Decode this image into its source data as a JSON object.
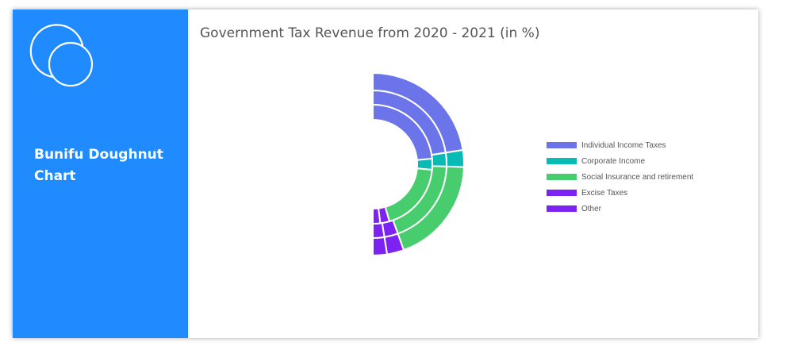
{
  "sidebar": {
    "title": "Bunifu Doughnut Chart",
    "bg_color": "#1f8bff"
  },
  "chart_data": {
    "type": "doughnut",
    "title": "Government Tax Revenue from 2020 - 2021 (in %)",
    "layout": "half-circle, rings stacked, legend right",
    "categories": [
      "Individual Income Taxes",
      "Corporate Income",
      "Social Insurance and retirement",
      "Excise Taxes",
      "Other"
    ],
    "colors": [
      "#6b74e8",
      "#0abab5",
      "#47cc6e",
      "#7c22f2",
      "#7c22f2"
    ],
    "series": [
      {
        "values": [
          45,
          6,
          38,
          6,
          5
        ]
      },
      {
        "values": [
          45,
          6,
          38,
          6,
          5
        ]
      },
      {
        "values": [
          47,
          6,
          38,
          5,
          4
        ]
      }
    ]
  }
}
